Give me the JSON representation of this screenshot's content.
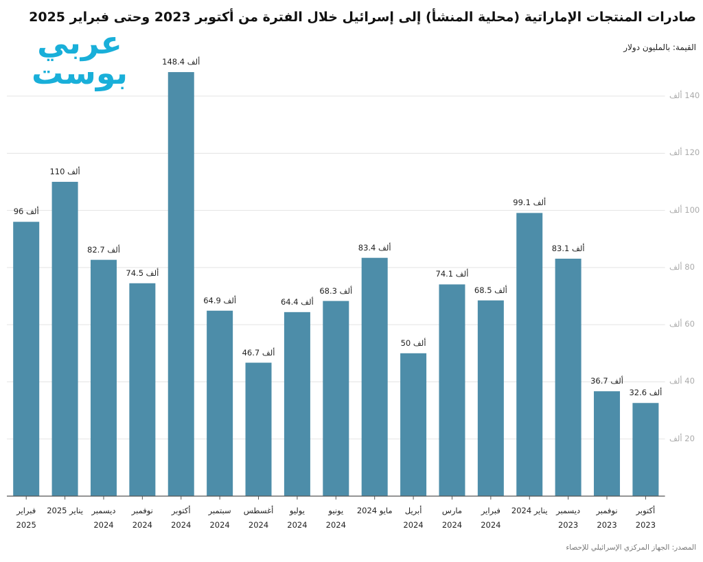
{
  "chart_data": {
    "type": "bar",
    "title": "صادرات المنتجات الإماراتية (محلية المنشأ) إلى إسرائيل خلال الفترة من أكتوبر 2023 وحتى فبراير 2025",
    "subtitle": "القيمة: بالمليون دولار",
    "source": "المصدر: الجهاز المركزي الإسرائيلي للإحصاء",
    "logo": "عربي بوست",
    "categories": [
      "فبراير 2025",
      "يناير 2025",
      "ديسمبر 2024",
      "نوفمبر 2024",
      "أكتوبر 2024",
      "سبتمبر 2024",
      "أغسطس 2024",
      "يوليو 2024",
      "يونيو 2024",
      "مايو 2024",
      "أبريل 2024",
      "مارس 2024",
      "فبراير 2024",
      "يناير 2024",
      "ديسمبر 2023",
      "نوفمبر 2023",
      "أكتوبر 2023"
    ],
    "values": [
      96,
      110,
      82.7,
      74.5,
      148.4,
      64.9,
      46.7,
      64.4,
      68.3,
      83.4,
      50,
      74.1,
      68.5,
      99.1,
      83.1,
      36.7,
      32.6
    ],
    "value_labels": [
      "96 ألف",
      "110 ألف",
      "82.7 ألف",
      "74.5 ألف",
      "148.4 ألف",
      "64.9 ألف",
      "46.7 ألف",
      "64.4 ألف",
      "68.3 ألف",
      "83.4 ألف",
      "50 ألف",
      "74.1 ألف",
      "68.5 ألف",
      "99.1 ألف",
      "83.1 ألف",
      "36.7 ألف",
      "32.6 ألف"
    ],
    "color": "#4d8da9",
    "ylim": [
      0,
      150
    ],
    "yticks": [
      {
        "value": 20,
        "label": "20 ألف"
      },
      {
        "value": 40,
        "label": "40 ألف"
      },
      {
        "value": 60,
        "label": "60 ألف"
      },
      {
        "value": 80,
        "label": "80 ألف"
      },
      {
        "value": 100,
        "label": "100 ألف"
      },
      {
        "value": 120,
        "label": "120 ألف"
      },
      {
        "value": 140,
        "label": "140 ألف"
      }
    ],
    "grid": true
  }
}
